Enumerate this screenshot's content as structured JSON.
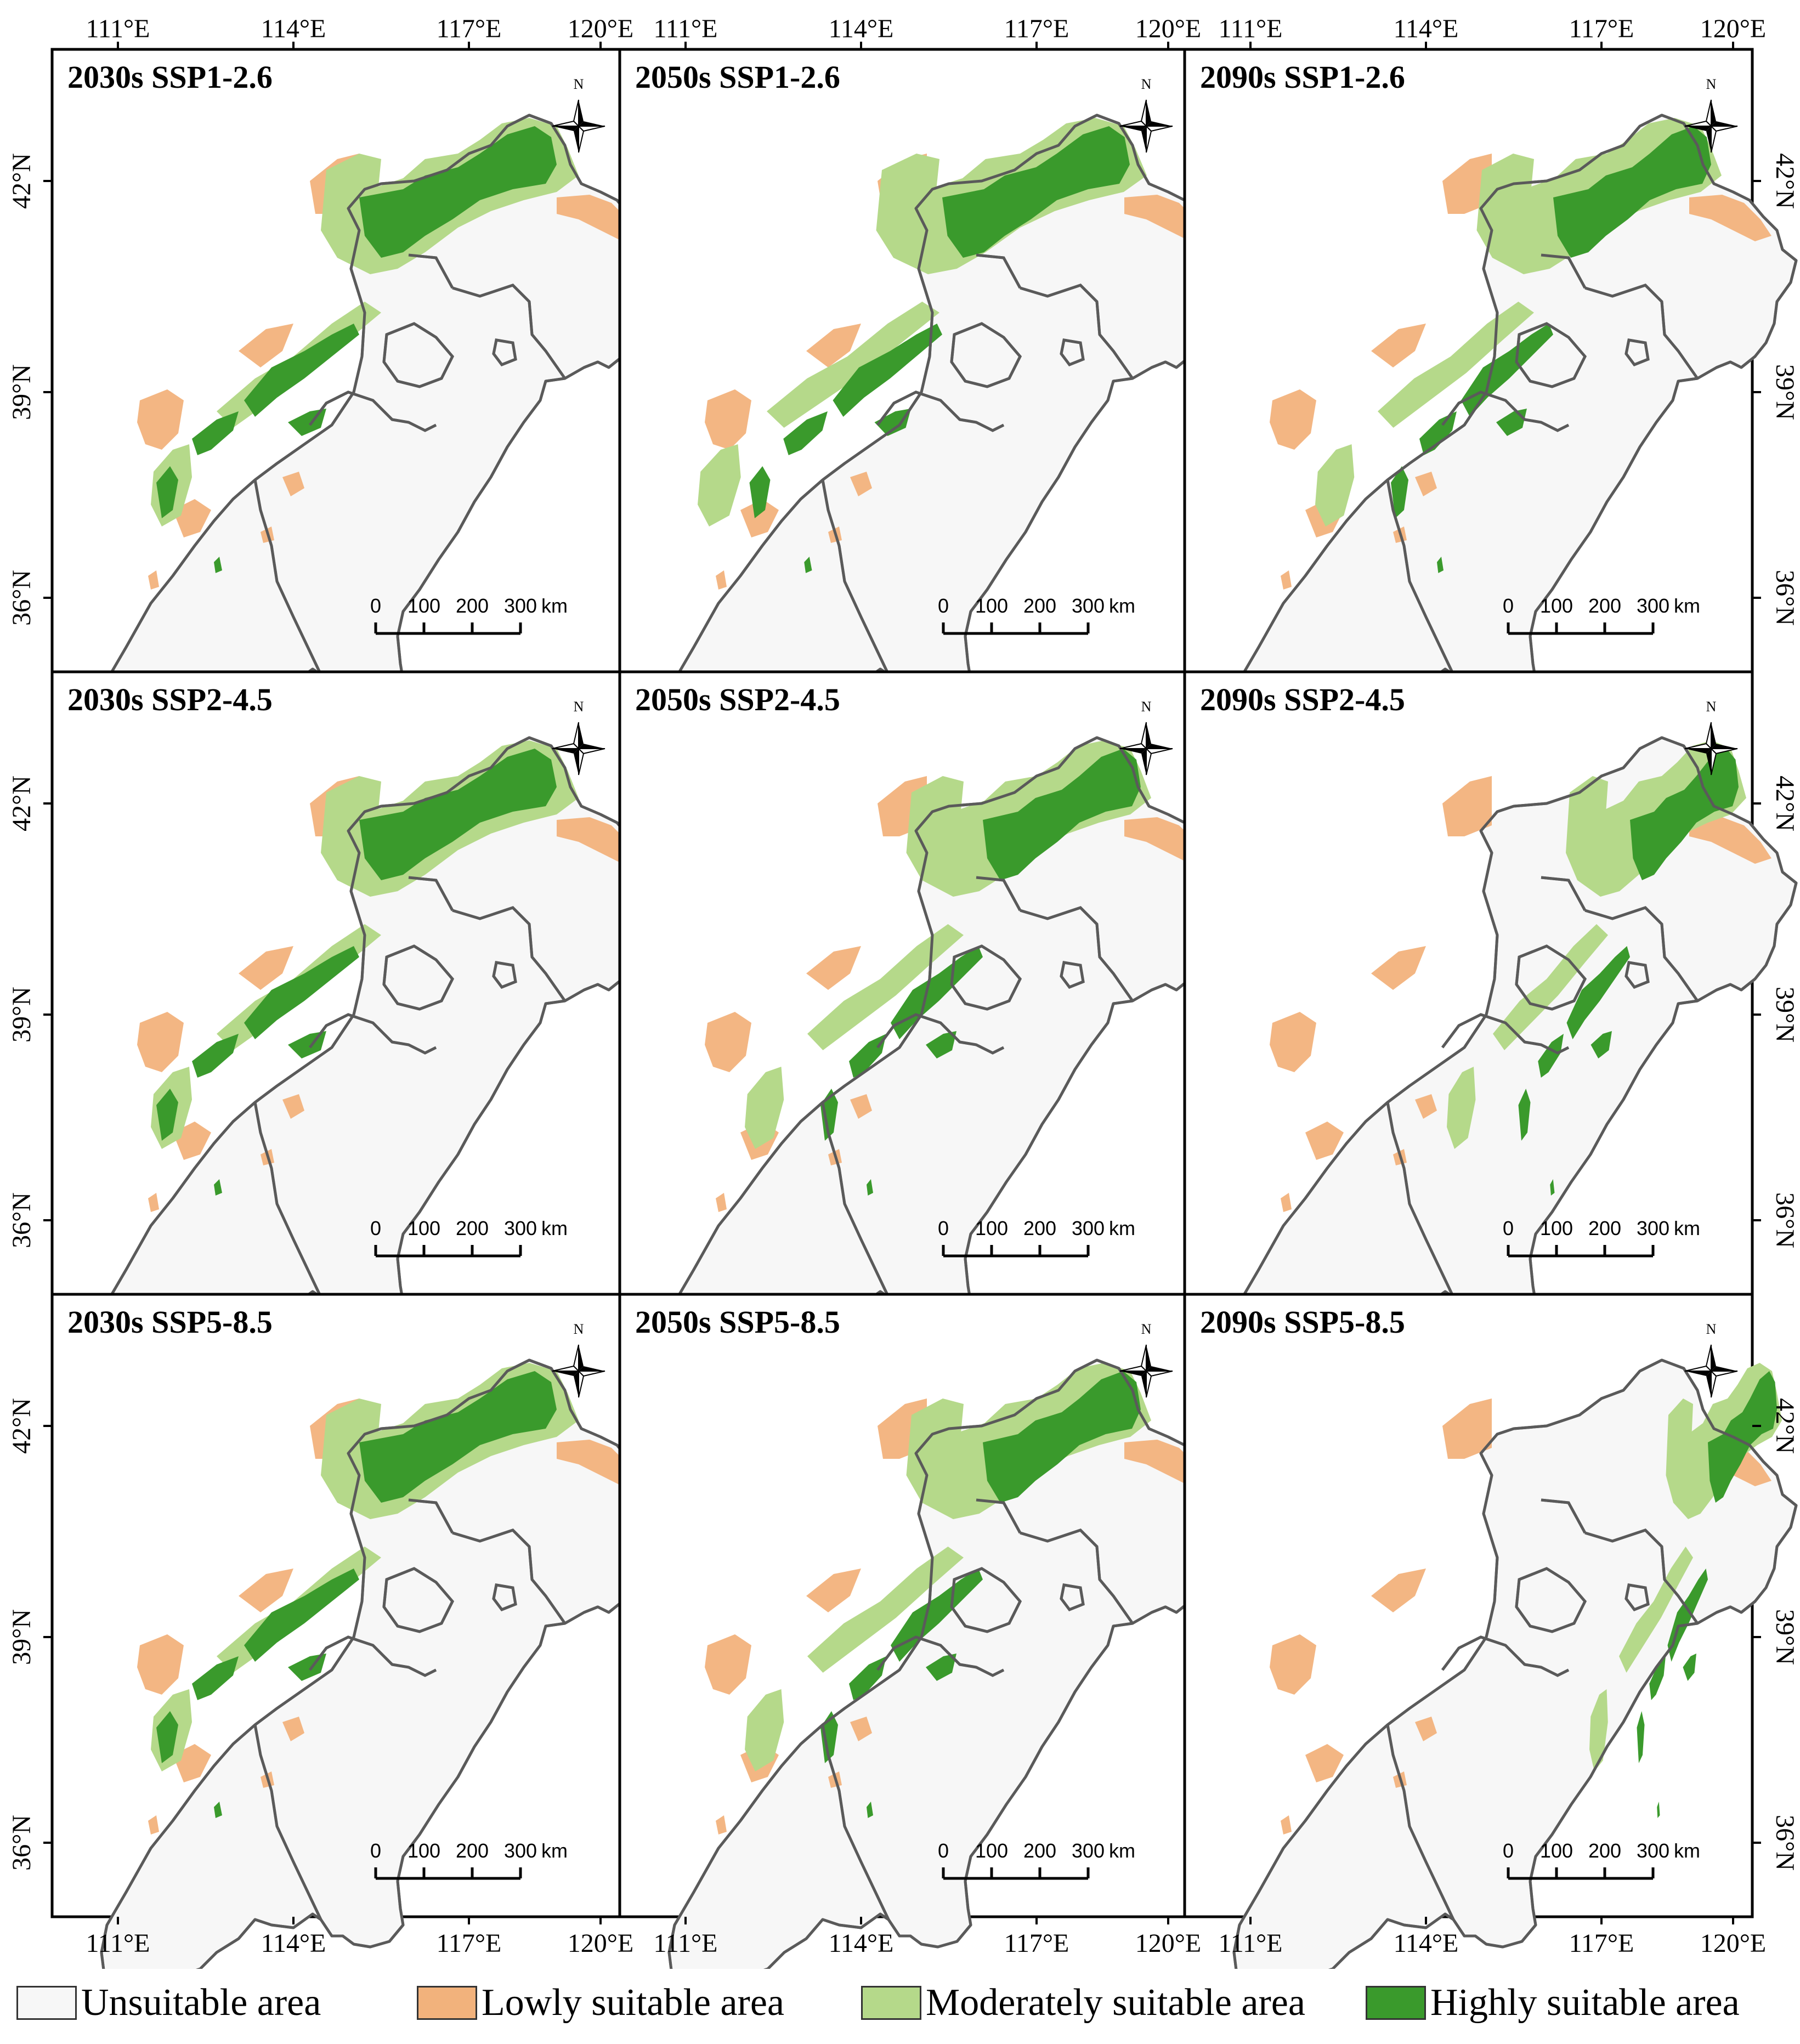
{
  "figure": {
    "lon_ticks": [
      "111°E",
      "114°E",
      "117°E",
      "120°E"
    ],
    "lat_ticks": [
      "42°N",
      "39°N",
      "36°N"
    ],
    "north_label": "N",
    "scale_bar": {
      "numbers": [
        "0",
        "100",
        "200",
        "300"
      ],
      "unit": "km"
    },
    "panels": [
      {
        "title": "2030s SSP1-2.6",
        "period": "2030s",
        "scenario": "SSP1-2.6"
      },
      {
        "title": "2050s SSP1-2.6",
        "period": "2050s",
        "scenario": "SSP1-2.6"
      },
      {
        "title": "2090s SSP1-2.6",
        "period": "2090s",
        "scenario": "SSP1-2.6"
      },
      {
        "title": "2030s SSP2-4.5",
        "period": "2030s",
        "scenario": "SSP2-4.5"
      },
      {
        "title": "2050s SSP2-4.5",
        "period": "2050s",
        "scenario": "SSP2-4.5"
      },
      {
        "title": "2090s SSP2-4.5",
        "period": "2090s",
        "scenario": "SSP2-4.5"
      },
      {
        "title": "2030s SSP5-8.5",
        "period": "2030s",
        "scenario": "SSP5-8.5"
      },
      {
        "title": "2050s SSP5-8.5",
        "period": "2050s",
        "scenario": "SSP5-8.5"
      },
      {
        "title": "2090s SSP5-8.5",
        "period": "2090s",
        "scenario": "SSP5-8.5"
      }
    ]
  },
  "legend": {
    "items": [
      {
        "label": "Unsuitable area",
        "color": "#f7f7f7"
      },
      {
        "label": "Lowly suitable area",
        "color": "#f2b27c"
      },
      {
        "label": "Moderately suitable area",
        "color": "#b5d98a"
      },
      {
        "label": "Highly suitable area",
        "color": "#3a9a2c"
      }
    ]
  },
  "colors": {
    "boundary": "#5a5a5a",
    "frame": "#000000",
    "background": "#ffffff"
  }
}
